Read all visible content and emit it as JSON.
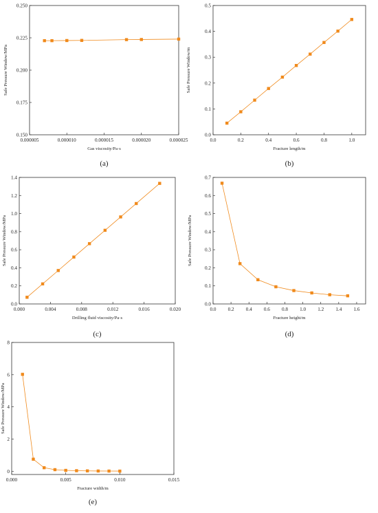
{
  "colors": {
    "series": "#f08a1c",
    "axis": "#333333"
  },
  "chart_data": [
    {
      "type": "line",
      "panel_label": "(a)",
      "xlabel": "Gas viscosity/Pa·s",
      "ylabel": "Safe Pressure Window/MPa",
      "xlim": [
        5e-06,
        2.5e-05
      ],
      "ylim": [
        0.15,
        0.25
      ],
      "xticks": [
        5e-06,
        1e-05,
        1.5e-05,
        2e-05,
        2.5e-05
      ],
      "xtick_labels": [
        "0.000005",
        "0.000010",
        "0.000015",
        "0.000020",
        "0.000025"
      ],
      "yticks": [
        0.15,
        0.175,
        0.2,
        0.225,
        0.25
      ],
      "ytick_labels": [
        "0.150",
        "0.175",
        "0.200",
        "0.225",
        "0.250"
      ],
      "x": [
        7e-06,
        8e-06,
        1e-05,
        1.2e-05,
        1.8e-05,
        2e-05,
        2.5e-05
      ],
      "y": [
        0.2228,
        0.2228,
        0.2229,
        0.223,
        0.2236,
        0.2237,
        0.224
      ],
      "grid": false
    },
    {
      "type": "line",
      "panel_label": "(b)",
      "xlabel": "Fracture length/m",
      "ylabel": "Safe Pressure Window/m",
      "xlim": [
        0.0,
        1.1
      ],
      "ylim": [
        0.0,
        0.5
      ],
      "xticks": [
        0.0,
        0.2,
        0.4,
        0.6,
        0.8,
        1.0
      ],
      "xtick_labels": [
        "0.0",
        "0.2",
        "0.4",
        "0.6",
        "0.8",
        "1.0"
      ],
      "yticks": [
        0.0,
        0.1,
        0.2,
        0.3,
        0.4,
        0.5
      ],
      "ytick_labels": [
        "0.0",
        "0.1",
        "0.2",
        "0.3",
        "0.4",
        "0.5"
      ],
      "x": [
        0.1,
        0.2,
        0.3,
        0.4,
        0.5,
        0.6,
        0.7,
        0.8,
        0.9,
        1.0
      ],
      "y": [
        0.045,
        0.089,
        0.134,
        0.179,
        0.223,
        0.268,
        0.312,
        0.357,
        0.401,
        0.446
      ],
      "grid": false
    },
    {
      "type": "line",
      "panel_label": "(c)",
      "xlabel": "Drilling fluid viscosity/Pa·s",
      "ylabel": "Safe Pressure Window/MPa",
      "xlim": [
        0.0,
        0.02
      ],
      "ylim": [
        0.0,
        1.4
      ],
      "xticks": [
        0.0,
        0.004,
        0.008,
        0.012,
        0.016,
        0.02
      ],
      "xtick_labels": [
        "0.000",
        "0.004",
        "0.008",
        "0.012",
        "0.016",
        "0.020"
      ],
      "yticks": [
        0.0,
        0.2,
        0.4,
        0.6,
        0.8,
        1.0,
        1.2,
        1.4
      ],
      "ytick_labels": [
        "0.0",
        "0.2",
        "0.4",
        "0.6",
        "0.8",
        "1.0",
        "1.2",
        "1.4"
      ],
      "x": [
        0.001,
        0.003,
        0.005,
        0.007,
        0.009,
        0.011,
        0.013,
        0.015,
        0.018
      ],
      "y": [
        0.074,
        0.222,
        0.37,
        0.519,
        0.667,
        0.815,
        0.963,
        1.111,
        1.334
      ],
      "grid": false
    },
    {
      "type": "line",
      "panel_label": "(d)",
      "xlabel": "Fracture height/m",
      "ylabel": "Safe Pressure Window/MPa",
      "xlim": [
        0.0,
        1.7
      ],
      "ylim": [
        0.0,
        0.7
      ],
      "xticks": [
        0.0,
        0.2,
        0.4,
        0.6,
        0.8,
        1.0,
        1.2,
        1.4,
        1.6
      ],
      "xtick_labels": [
        "0.0",
        "0.2",
        "0.4",
        "0.6",
        "0.8",
        "1.0",
        "1.2",
        "1.4",
        "1.6"
      ],
      "yticks": [
        0.0,
        0.1,
        0.2,
        0.3,
        0.4,
        0.5,
        0.6,
        0.7
      ],
      "ytick_labels": [
        "0.0",
        "0.1",
        "0.2",
        "0.3",
        "0.4",
        "0.5",
        "0.6",
        "0.7"
      ],
      "x": [
        0.1,
        0.3,
        0.5,
        0.7,
        0.9,
        1.1,
        1.3,
        1.5
      ],
      "y": [
        0.668,
        0.223,
        0.134,
        0.095,
        0.074,
        0.061,
        0.051,
        0.045
      ],
      "grid": false
    },
    {
      "type": "line",
      "panel_label": "(e)",
      "xlabel": "Fracture width/m",
      "ylabel": "Safe Pressure Window/MPa",
      "xlim": [
        0.0,
        0.015
      ],
      "ylim": [
        -0.2,
        8.0
      ],
      "xticks": [
        0.0,
        0.005,
        0.01,
        0.015
      ],
      "xtick_labels": [
        "0.000",
        "0.005",
        "0.010",
        "0.015"
      ],
      "yticks": [
        0,
        2,
        4,
        6,
        8
      ],
      "ytick_labels": [
        "0",
        "2",
        "4",
        "6",
        "8"
      ],
      "x": [
        0.001,
        0.002,
        0.003,
        0.004,
        0.005,
        0.006,
        0.007,
        0.008,
        0.009,
        0.01
      ],
      "y": [
        6.02,
        0.75,
        0.22,
        0.1,
        0.055,
        0.035,
        0.024,
        0.017,
        0.013,
        0.01
      ],
      "grid": false
    }
  ]
}
